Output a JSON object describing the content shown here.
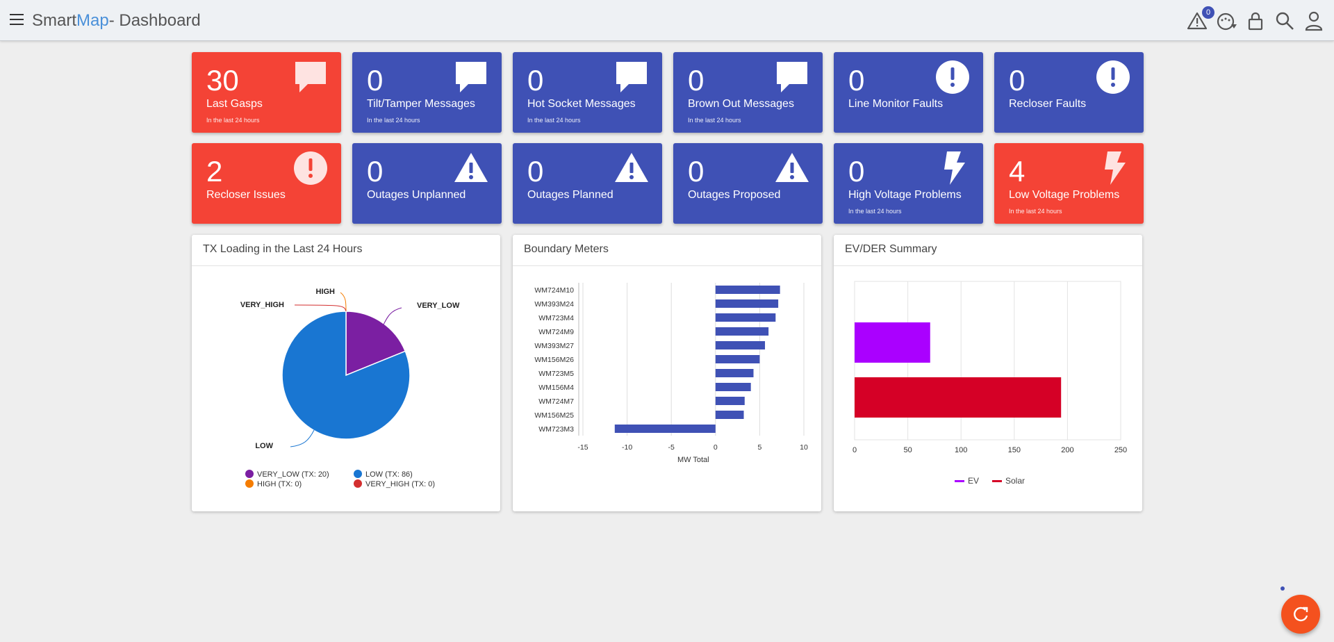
{
  "header": {
    "brand_prefix": "Smart",
    "brand_accent": "Map",
    "brand_suffix": "- Dashboard",
    "alerts_count": "0"
  },
  "cards": [
    {
      "value": "30",
      "label": "Last Gasps",
      "sub": "In the last 24 hours",
      "color": "#f44336",
      "icon": "message-icon"
    },
    {
      "value": "0",
      "label": "Tilt/Tamper Messages",
      "sub": "In the last 24 hours",
      "color": "#3f51b5",
      "icon": "message-icon"
    },
    {
      "value": "0",
      "label": "Hot Socket Messages",
      "sub": "In the last 24 hours",
      "color": "#3f51b5",
      "icon": "message-icon"
    },
    {
      "value": "0",
      "label": "Brown Out Messages",
      "sub": "In the last 24 hours",
      "color": "#3f51b5",
      "icon": "message-icon"
    },
    {
      "value": "0",
      "label": "Line Monitor Faults",
      "sub": "",
      "color": "#3f51b5",
      "icon": "exclamation-circle-icon"
    },
    {
      "value": "0",
      "label": "Recloser Faults",
      "sub": "",
      "color": "#3f51b5",
      "icon": "exclamation-circle-icon"
    },
    {
      "value": "2",
      "label": "Recloser Issues",
      "sub": "",
      "color": "#f44336",
      "icon": "exclamation-circle-icon"
    },
    {
      "value": "0",
      "label": "Outages Unplanned",
      "sub": "",
      "color": "#3f51b5",
      "icon": "warning-triangle-icon"
    },
    {
      "value": "0",
      "label": "Outages Planned",
      "sub": "",
      "color": "#3f51b5",
      "icon": "warning-triangle-icon"
    },
    {
      "value": "0",
      "label": "Outages Proposed",
      "sub": "",
      "color": "#3f51b5",
      "icon": "warning-triangle-icon"
    },
    {
      "value": "0",
      "label": "High Voltage Problems",
      "sub": "In the last 24 hours",
      "color": "#3f51b5",
      "icon": "lightning-bolt-icon"
    },
    {
      "value": "4",
      "label": "Low Voltage Problems",
      "sub": "In the last 24 hours",
      "color": "#f44336",
      "icon": "lightning-bolt-icon"
    }
  ],
  "panels": {
    "tx_title": "TX Loading in the Last 24 Hours",
    "boundary_title": "Boundary Meters",
    "ev_title": "EV/DER Summary"
  },
  "chart_data": [
    {
      "type": "pie",
      "title": "TX Loading in the Last 24 Hours",
      "slices": [
        {
          "name": "VERY_LOW",
          "value": 20,
          "color": "#7b1fa2",
          "legend": "VERY_LOW (TX: 20)"
        },
        {
          "name": "LOW",
          "value": 86,
          "color": "#1976d2",
          "legend": "LOW (TX: 86)"
        },
        {
          "name": "HIGH",
          "value": 0,
          "color": "#f57c00",
          "legend": "HIGH (TX: 0)"
        },
        {
          "name": "VERY_HIGH",
          "value": 0,
          "color": "#d32f2f",
          "legend": "VERY_HIGH (TX: 0)"
        }
      ]
    },
    {
      "type": "bar",
      "orientation": "horizontal",
      "title": "Boundary Meters",
      "xlabel": "MW Total",
      "xlim": [
        -15,
        10
      ],
      "xticks": [
        "-15",
        "-10",
        "-5",
        "0",
        "5",
        "10"
      ],
      "categories": [
        "WM724M10",
        "WM393M24",
        "WM723M4",
        "WM724M9",
        "WM393M27",
        "WM156M26",
        "WM723M5",
        "WM156M4",
        "WM724M7",
        "WM156M25",
        "WM723M3"
      ],
      "values": [
        7.3,
        7.1,
        6.8,
        6.0,
        5.6,
        5.0,
        4.3,
        4.0,
        3.3,
        3.2,
        -11.4
      ],
      "color": "#3f51b5"
    },
    {
      "type": "bar",
      "orientation": "horizontal",
      "title": "EV/DER Summary",
      "xlim": [
        0,
        250
      ],
      "xticks": [
        "0",
        "50",
        "100",
        "150",
        "200",
        "250"
      ],
      "series": [
        {
          "name": "EV",
          "value": 71,
          "color": "#aa00ff"
        },
        {
          "name": "Solar",
          "value": 194,
          "color": "#d50026"
        }
      ]
    }
  ]
}
